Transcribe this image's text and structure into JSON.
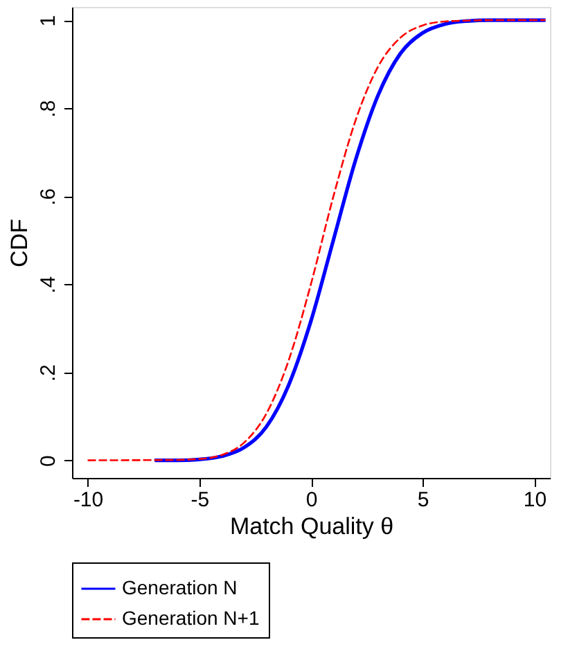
{
  "chart_data": {
    "type": "line",
    "xlabel": "Match Quality θ",
    "ylabel": "CDF",
    "series": [
      {
        "name": "Generation N",
        "color": "#0000ff",
        "line_style": "solid",
        "x": [
          -7,
          -6,
          -5,
          -4,
          -3,
          -2,
          -1,
          0,
          1,
          2,
          3,
          4,
          5,
          6,
          7,
          8,
          10.5
        ],
        "values": [
          0,
          0,
          0.002,
          0.009,
          0.029,
          0.076,
          0.171,
          0.317,
          0.5,
          0.683,
          0.829,
          0.924,
          0.971,
          0.991,
          0.998,
          1,
          1
        ]
      },
      {
        "name": "Generation N+1",
        "color": "#ff0000",
        "line_style": "dashed",
        "x": [
          -10,
          -6,
          -5,
          -4,
          -3,
          -2,
          -1,
          0,
          1,
          2,
          3,
          4,
          5,
          6,
          7,
          8,
          10.5
        ],
        "values": [
          0,
          0.001,
          0.003,
          0.012,
          0.04,
          0.106,
          0.227,
          0.401,
          0.599,
          0.773,
          0.894,
          0.96,
          0.988,
          0.997,
          0.999,
          1,
          1
        ]
      }
    ],
    "xlim": [
      -10.7,
      10.7
    ],
    "xticks": [
      -10,
      -5,
      0,
      5,
      10
    ],
    "ylim": [
      -0.04,
      1.03
    ],
    "yticks": [
      0,
      {
        "value": 0.2,
        "label": ".2"
      },
      {
        "value": 0.4,
        "label": ".4"
      },
      {
        "value": 0.6,
        "label": ".6"
      },
      {
        "value": 0.8,
        "label": ".8"
      },
      1
    ],
    "grid": false,
    "legend": "bottom",
    "marker": "none"
  }
}
